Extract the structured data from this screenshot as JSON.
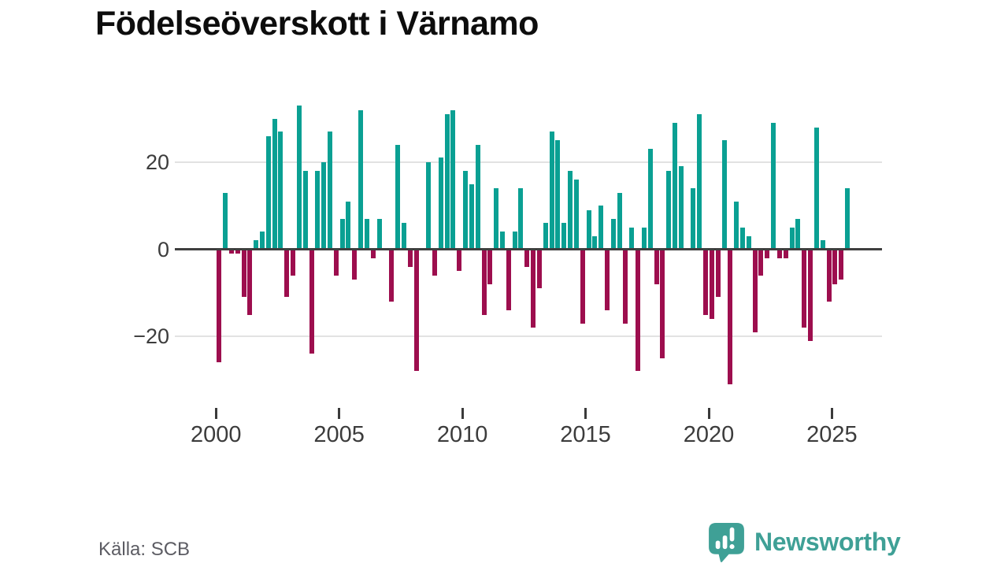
{
  "title": "Födelseöverskott i Värnamo",
  "footer": {
    "source": "Källa: SCB"
  },
  "brand": {
    "name": "Newsworthy",
    "logo_icon": "bar-chart-pin-icon"
  },
  "colors": {
    "positive": "#0aa093",
    "negative": "#9d0e4e",
    "axis_line": "#3f3f3f",
    "gridline": "#e2e2e2",
    "brand_teal": "#3fa096",
    "tick_text": "#3c3c3c",
    "source_text": "#5c5c63"
  },
  "chart_data": {
    "type": "bar",
    "title": "Födelseöverskott i Värnamo",
    "x_unit": "quarter",
    "start_year": 2000,
    "start_quarter": 1,
    "end_label": "2025 Q3",
    "x_tick_labels": [
      "2000",
      "2005",
      "2010",
      "2015",
      "2020",
      "2025"
    ],
    "y_ticks": [
      {
        "label": "20",
        "value": 20
      },
      {
        "label": "0",
        "value": 0
      },
      {
        "label": "−20",
        "value": -20
      }
    ],
    "ylim": [
      -35,
      36
    ],
    "grid": "horizontal",
    "legend": "none",
    "values": [
      -26,
      13,
      -1,
      -1,
      -11,
      -15,
      2,
      4,
      26,
      30,
      27,
      -11,
      -6,
      33,
      18,
      -24,
      18,
      20,
      27,
      -6,
      7,
      11,
      -7,
      32,
      7,
      -2,
      7,
      0,
      -12,
      24,
      6,
      -4,
      -28,
      0,
      20,
      -6,
      21,
      31,
      32,
      -5,
      18,
      15,
      24,
      -15,
      -8,
      14,
      4,
      -14,
      4,
      14,
      -4,
      -18,
      -9,
      6,
      27,
      25,
      6,
      18,
      16,
      -17,
      9,
      3,
      10,
      -14,
      7,
      13,
      -17,
      5,
      -28,
      5,
      23,
      -8,
      -25,
      18,
      29,
      19,
      0,
      14,
      31,
      -15,
      -16,
      -11,
      25,
      -31,
      11,
      5,
      3,
      -19,
      -6,
      -2,
      29,
      -2,
      -2,
      5,
      7,
      -18,
      -21,
      28,
      2,
      -12,
      -8,
      -7,
      14
    ]
  }
}
